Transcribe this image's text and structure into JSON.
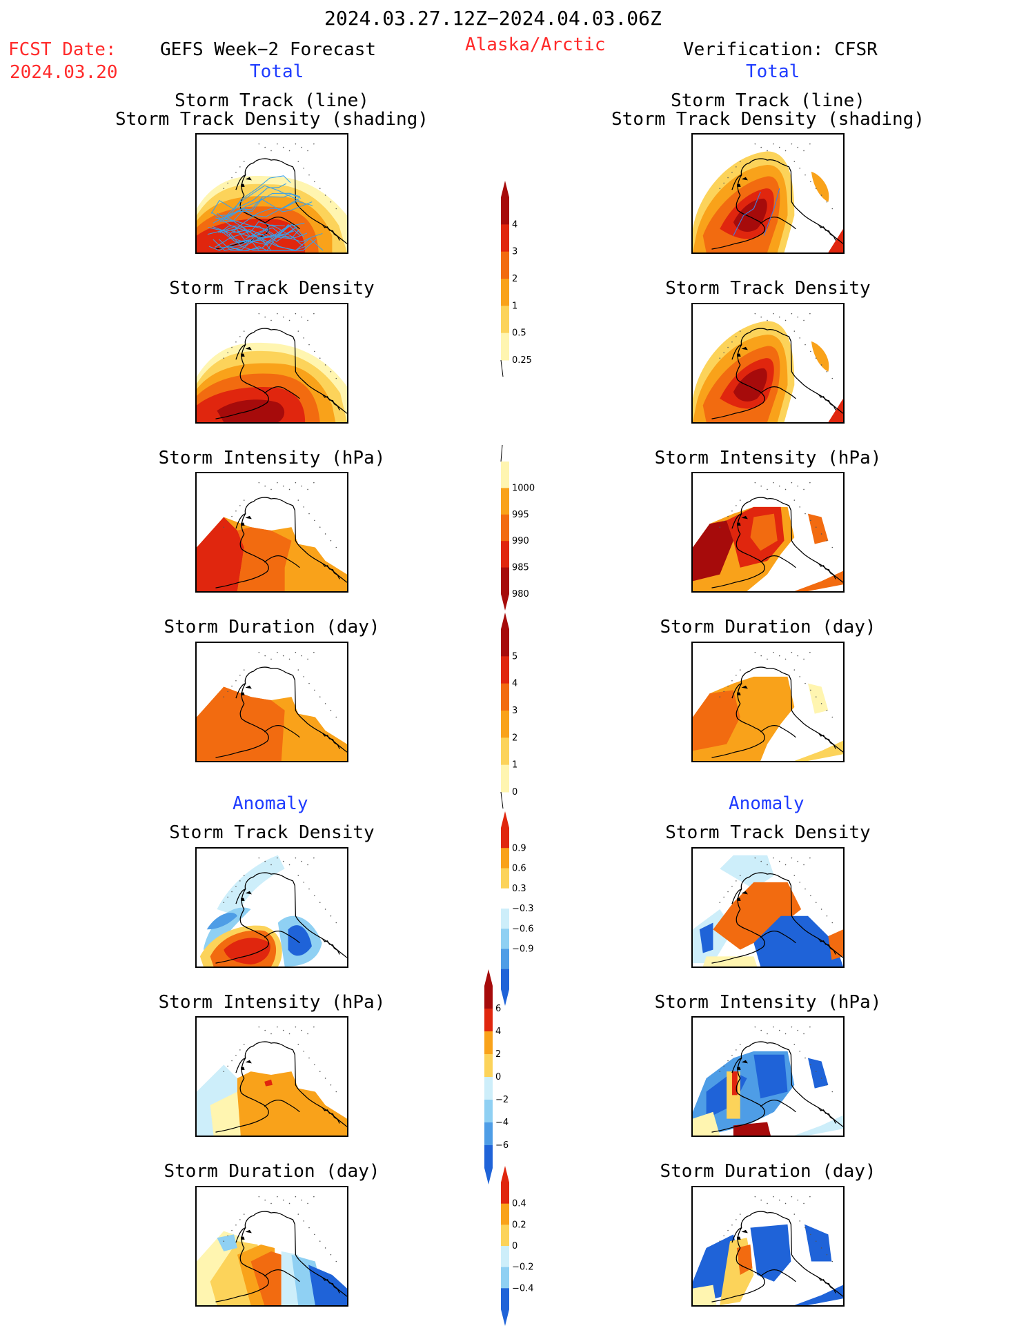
{
  "header": {
    "date_range": "2024.03.27.12Z−2024.04.03.06Z",
    "fcst_label": "FCST Date:",
    "fcst_date": "2024.03.20",
    "model_title": "GEFS Week−2 Forecast",
    "region": "Alaska/Arctic",
    "verification_title": "Verification: CFSR",
    "left_total": "Total",
    "right_total": "Total",
    "left_anomaly": "Anomaly",
    "right_anomaly": "Anomaly"
  },
  "panel_titles": {
    "track_line": "Storm Track (line)",
    "track_shading": "Storm Track Density (shading)",
    "density": "Storm Track Density",
    "intensity": "Storm Intensity (hPa)",
    "duration": "Storm Duration (day)"
  },
  "colors": {
    "c1": "#fff5b0",
    "c2": "#fcd35a",
    "c3": "#f9a21a",
    "c4": "#f26b10",
    "c5": "#e0260e",
    "c6": "#a60b0b",
    "b1": "#cdeefa",
    "b2": "#8fd0f3",
    "b3": "#4e9de6",
    "b4": "#1f63d8"
  },
  "chart_data": [
    {
      "type": "colorbar",
      "name": "storm_track_density",
      "ticks": [
        "4",
        "3",
        "2",
        "1",
        "0.5",
        "0.25"
      ],
      "values": [
        4,
        3,
        2,
        1,
        0.5,
        0.25
      ],
      "colors": [
        "#a60b0b",
        "#e0260e",
        "#f26b10",
        "#f9a21a",
        "#fcd35a",
        "#fff5b0"
      ]
    },
    {
      "type": "colorbar",
      "name": "storm_intensity",
      "ticks": [
        "1000",
        "995",
        "990",
        "985",
        "980"
      ],
      "values": [
        1000,
        995,
        990,
        985,
        980
      ],
      "colors": [
        "#fff5b0",
        "#f9a21a",
        "#f26b10",
        "#e0260e",
        "#a60b0b"
      ]
    },
    {
      "type": "colorbar",
      "name": "storm_duration",
      "ticks": [
        "5",
        "4",
        "3",
        "2",
        "1",
        "0"
      ],
      "values": [
        5,
        4,
        3,
        2,
        1,
        0
      ],
      "colors": [
        "#a60b0b",
        "#e0260e",
        "#f26b10",
        "#f9a21a",
        "#fcd35a",
        "#fff5b0"
      ]
    },
    {
      "type": "colorbar",
      "name": "anomaly_density",
      "ticks": [
        "0.9",
        "0.6",
        "0.3",
        "−0.3",
        "−0.6",
        "−0.9"
      ],
      "values": [
        0.9,
        0.6,
        0.3,
        -0.3,
        -0.6,
        -0.9
      ],
      "colors": [
        "#e0260e",
        "#f9a21a",
        "#fcd35a",
        "#ffffff",
        "#cdeefa",
        "#8fd0f3",
        "#4e9de6",
        "#1f63d8"
      ]
    },
    {
      "type": "colorbar",
      "name": "anomaly_intensity",
      "ticks": [
        "6",
        "4",
        "2",
        "0",
        "−2",
        "−4",
        "−6"
      ],
      "values": [
        6,
        4,
        2,
        0,
        -2,
        -4,
        -6
      ],
      "colors": [
        "#a60b0b",
        "#e0260e",
        "#f9a21a",
        "#fcd35a",
        "#cdeefa",
        "#8fd0f3",
        "#4e9de6",
        "#1f63d8"
      ]
    },
    {
      "type": "colorbar",
      "name": "anomaly_duration",
      "ticks": [
        "0.4",
        "0.2",
        "0",
        "−0.2",
        "−0.4"
      ],
      "values": [
        0.4,
        0.2,
        0,
        -0.2,
        -0.4
      ],
      "colors": [
        "#e0260e",
        "#f9a21a",
        "#fcd35a",
        "#cdeefa",
        "#8fd0f3",
        "#1f63d8"
      ]
    }
  ]
}
